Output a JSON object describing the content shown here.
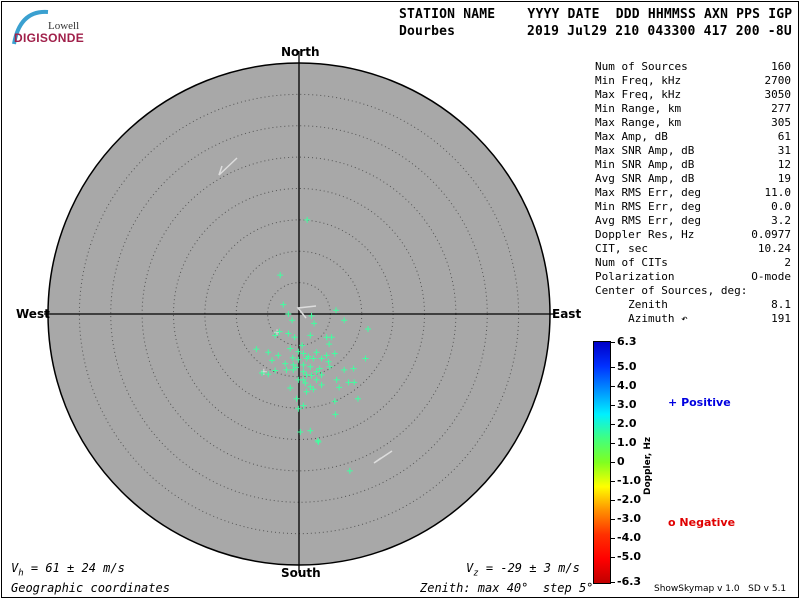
{
  "logo": {
    "line1": "Lowell",
    "line2": "DIGISONDE"
  },
  "header": {
    "labels": "STATION NAME    YYYY DATE  DDD HHMMSS AXN PPS IGP",
    "station": "Dourbes",
    "values": "2019 Jul29 210 043300 417 200 -8U"
  },
  "directions": {
    "north": "North",
    "south": "South",
    "east": "East",
    "west": "West"
  },
  "stats": [
    {
      "label": "Num of Sources",
      "value": "160"
    },
    {
      "label": "Min Freq, kHz",
      "value": "2700"
    },
    {
      "label": "Max Freq, kHz",
      "value": "3050"
    },
    {
      "label": "Min Range, km",
      "value": "277"
    },
    {
      "label": "Max Range, km",
      "value": "305"
    },
    {
      "label": "Max Amp, dB",
      "value": "61"
    },
    {
      "label": "Max SNR Amp, dB",
      "value": "31"
    },
    {
      "label": "Min SNR Amp, dB",
      "value": "12"
    },
    {
      "label": "Avg SNR Amp, dB",
      "value": "19"
    },
    {
      "label": "Max RMS Err, deg",
      "value": "11.0"
    },
    {
      "label": "Min RMS Err, deg",
      "value": "0.0"
    },
    {
      "label": "Avg RMS Err, deg",
      "value": "3.2"
    },
    {
      "label": "Doppler Res, Hz",
      "value": "0.0977"
    },
    {
      "label": "CIT, sec",
      "value": "10.24"
    },
    {
      "label": "Num of CITs",
      "value": "2"
    },
    {
      "label": "Polarization",
      "value": "O-mode"
    },
    {
      "label": "Center of Sources, deg:",
      "value": ""
    },
    {
      "label": "     Zenith",
      "value": "8.1"
    },
    {
      "label": "     Azimuth ↶",
      "value": "191"
    }
  ],
  "colorbar": {
    "title": "Doppler, Hz",
    "ticks": [
      "6.3",
      "5.0",
      "4.0",
      "3.0",
      "2.0",
      "1.0",
      "0",
      "-1.0",
      "-2.0",
      "-3.0",
      "-4.0",
      "-5.0",
      "-6.3"
    ],
    "colors": [
      "#0000c8",
      "#0030ff",
      "#0090ff",
      "#00f0ff",
      "#40ff80",
      "#80ff20",
      "#ffff00",
      "#ff9000",
      "#ff3000",
      "#ff0000",
      "#c00000"
    ]
  },
  "legend": {
    "positive": {
      "symbol": "+",
      "label": "Positive",
      "color": "#0000e0"
    },
    "negative": {
      "symbol": "o",
      "label": "Negative",
      "color": "#e00000"
    }
  },
  "footer": {
    "vh": "= 61 ± 24 m/s",
    "vh_symbol": "V",
    "vh_sub": "h",
    "vz": "= -29 ± 3 m/s",
    "vz_symbol": "V",
    "vz_sub": "z",
    "coords": "Geographic coordinates",
    "zenith": "Zenith: max 40°  step 5°",
    "version": "ShowSkymap v 1.0   SD v 5.1"
  },
  "chart_data": {
    "type": "scatter",
    "projection": "polar sky map, zenith angle radial",
    "zenith_max_deg": 40,
    "zenith_step_deg": 5,
    "plot_background": "#a8a8a8",
    "point_color": "#40ffa0",
    "points_east_north_deg": [
      [
        -2.5,
        1.5
      ],
      [
        -1.7,
        0.0
      ],
      [
        -1.1,
        -1.0
      ],
      [
        2.0,
        -0.3
      ],
      [
        2.4,
        -1.5
      ],
      [
        5.9,
        0.6
      ],
      [
        7.2,
        -1.0
      ],
      [
        11.0,
        -2.4
      ],
      [
        -3.1,
        -2.8
      ],
      [
        -1.7,
        -3.1
      ],
      [
        -3.8,
        -3.4
      ],
      [
        -0.7,
        -3.7
      ],
      [
        1.8,
        -3.4
      ],
      [
        4.4,
        -3.7
      ],
      [
        5.2,
        -3.7
      ],
      [
        4.8,
        -4.8
      ],
      [
        -6.8,
        -5.6
      ],
      [
        -4.9,
        -6.1
      ],
      [
        -3.3,
        -6.6
      ],
      [
        -4.3,
        -7.4
      ],
      [
        -1.4,
        -5.5
      ],
      [
        -0.1,
        -6.0
      ],
      [
        0.7,
        -6.3
      ],
      [
        2.8,
        -6.1
      ],
      [
        5.7,
        -6.3
      ],
      [
        4.4,
        -6.6
      ],
      [
        3.6,
        -7.1
      ],
      [
        2.3,
        -7.1
      ],
      [
        1.2,
        -7.1
      ],
      [
        -0.1,
        -7.3
      ],
      [
        -2.2,
        -7.9
      ],
      [
        -0.9,
        -8.1
      ],
      [
        0.7,
        -8.1
      ],
      [
        1.8,
        -8.4
      ],
      [
        3.3,
        -8.7
      ],
      [
        4.7,
        -7.6
      ],
      [
        4.9,
        -8.4
      ],
      [
        2.8,
        -9.2
      ],
      [
        0.7,
        -9.2
      ],
      [
        -0.9,
        -8.9
      ],
      [
        -2.0,
        -8.9
      ],
      [
        -3.8,
        -9.0
      ],
      [
        -5.9,
        -9.4
      ],
      [
        -4.9,
        -9.6
      ],
      [
        1.2,
        -9.7
      ],
      [
        3.6,
        -9.7
      ],
      [
        2.8,
        -10.5
      ],
      [
        0.7,
        -10.5
      ],
      [
        -0.1,
        -10.5
      ],
      [
        1.8,
        -11.6
      ],
      [
        2.3,
        -12.0
      ],
      [
        1.2,
        -12.4
      ],
      [
        3.6,
        -11.3
      ],
      [
        -1.4,
        -11.8
      ],
      [
        6.0,
        -10.5
      ],
      [
        7.9,
        -10.9
      ],
      [
        8.8,
        -10.9
      ],
      [
        6.4,
        -11.7
      ],
      [
        7.2,
        -8.9
      ],
      [
        8.7,
        -8.7
      ],
      [
        10.6,
        -7.1
      ],
      [
        9.4,
        -13.5
      ],
      [
        5.7,
        -13.9
      ],
      [
        -0.4,
        -13.5
      ],
      [
        0.7,
        -14.6
      ],
      [
        -0.1,
        -15.1
      ],
      [
        5.8,
        -16.0
      ],
      [
        0.2,
        -18.8
      ],
      [
        1.8,
        -18.6
      ],
      [
        3.1,
        -20.4
      ],
      [
        1.3,
        15.0
      ],
      [
        -3.0,
        6.2
      ],
      [
        3.0,
        -20.2
      ],
      [
        8.1,
        -25.0
      ],
      [
        0.5,
        -5.0
      ],
      [
        1.5,
        -6.8
      ],
      [
        -0.5,
        -8.5
      ],
      [
        2.0,
        -9.8
      ],
      [
        1.0,
        -11.0
      ],
      [
        -1.0,
        -7.0
      ]
    ],
    "gray_points_east_north_deg": [
      [
        -5.6,
        -9.2
      ],
      [
        -3.5,
        -2.9
      ]
    ]
  }
}
